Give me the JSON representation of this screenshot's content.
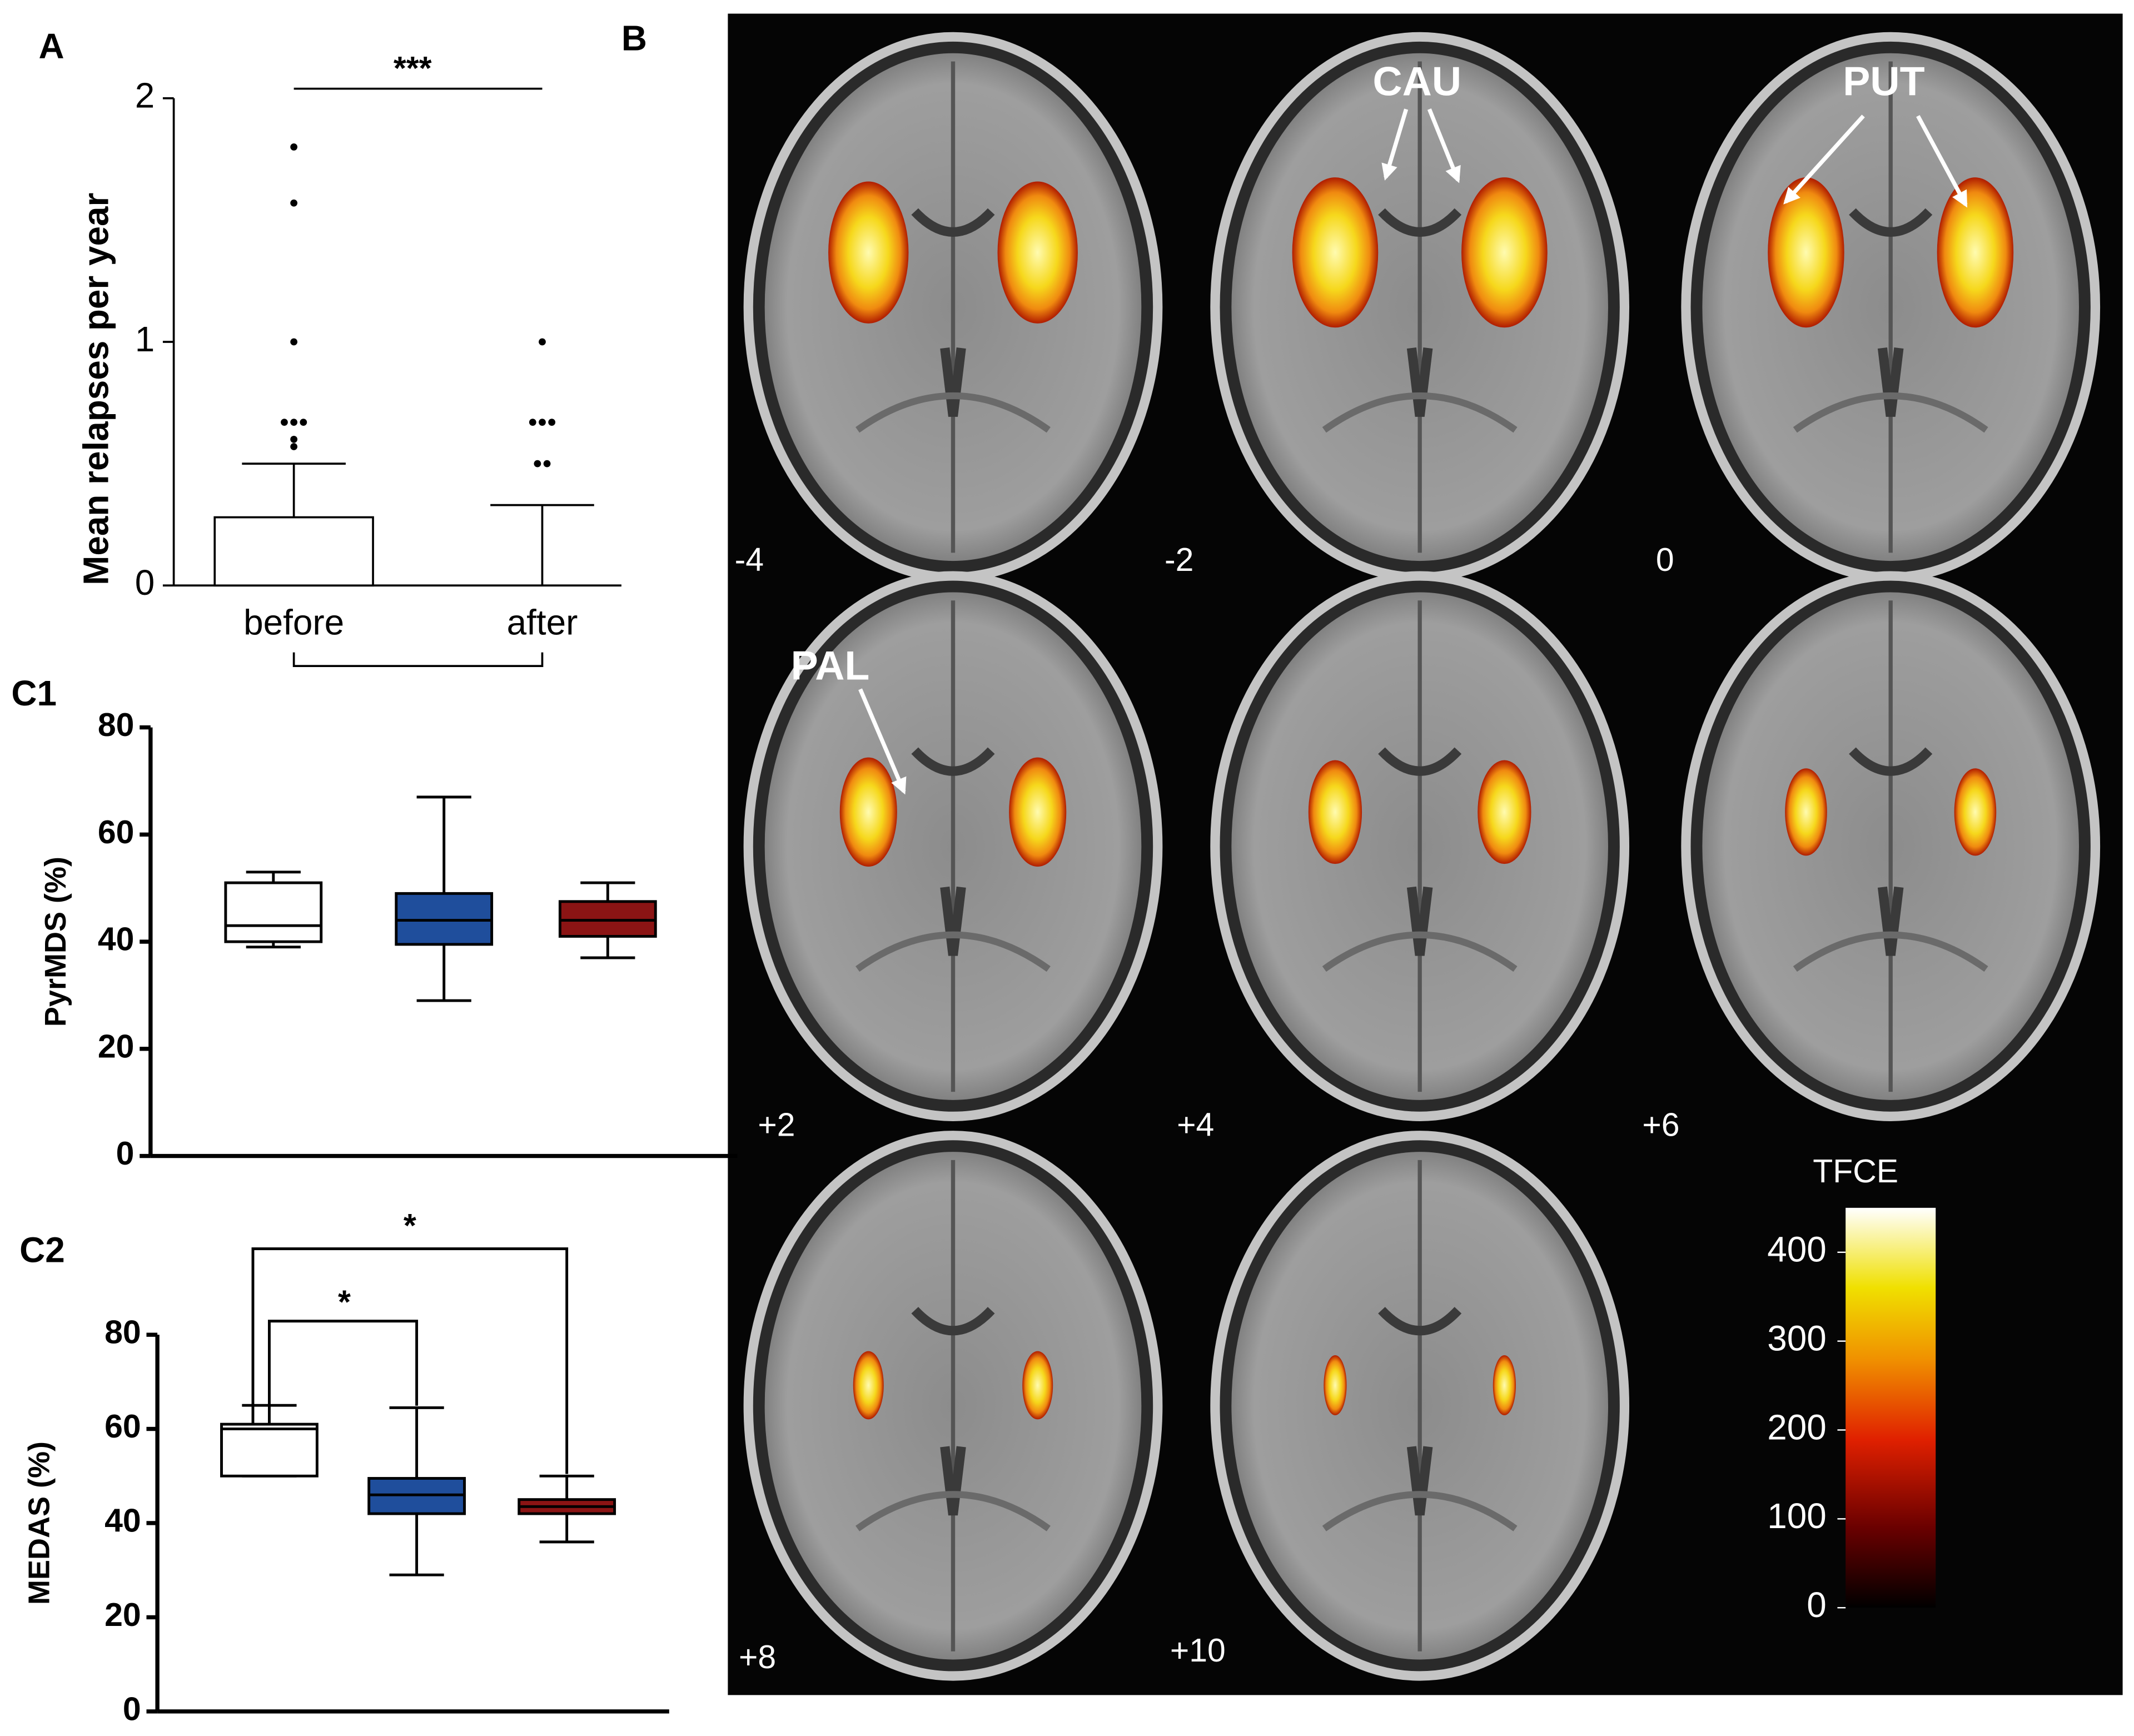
{
  "chart_data": [
    {
      "type": "bar",
      "panel_label": "A",
      "ylabel": "Mean relapses  per year",
      "categories": [
        "before",
        "after"
      ],
      "values": [
        0.28,
        0
      ],
      "errors": [
        0.22,
        0.33
      ],
      "points": [
        [
          1.8,
          1.57,
          1.0,
          0.67,
          0.67,
          0.67,
          0.6,
          0.57
        ],
        [
          1.0,
          0.67,
          0.67,
          0.67,
          0.5,
          0.5
        ]
      ],
      "color": "#ffffff",
      "ylim": [
        0,
        2
      ],
      "yticks": [
        0,
        1,
        2
      ],
      "annotations": [
        "***"
      ]
    },
    {
      "type": "box",
      "panel_label": "C1",
      "ylabel": "PyrMDS (%)",
      "boxes": [
        {
          "color": "#ffffff",
          "whislo": 39,
          "q1": 40,
          "med": 43,
          "q3": 51,
          "whishi": 53
        },
        {
          "color": "#1f4e9c",
          "whislo": 29,
          "q1": 39.5,
          "med": 44,
          "q3": 49,
          "whishi": 67
        },
        {
          "color": "#8b1414",
          "whislo": 37,
          "q1": 41,
          "med": 44,
          "q3": 47.5,
          "whishi": 51
        }
      ],
      "ylim": [
        0,
        80
      ],
      "yticks": [
        0,
        20,
        40,
        60,
        80
      ]
    },
    {
      "type": "box",
      "panel_label": "C2",
      "ylabel": "MEDAS (%)",
      "boxes": [
        {
          "color": "#ffffff",
          "whislo": 50,
          "q1": 50,
          "med": 60,
          "q3": 61,
          "whishi": 65
        },
        {
          "color": "#1f4e9c",
          "whislo": 29,
          "q1": 42,
          "med": 46,
          "q3": 49.5,
          "whishi": 64.5
        },
        {
          "color": "#8b1414",
          "whislo": 36,
          "q1": 42,
          "med": 43.5,
          "q3": 45,
          "whishi": 50
        }
      ],
      "ylim": [
        0,
        80
      ],
      "yticks": [
        0,
        20,
        40,
        60,
        80
      ],
      "annotations": [
        "*",
        "*"
      ]
    }
  ],
  "brain_panel": {
    "panel_label": "B",
    "slices": [
      "-4",
      "-2",
      "0",
      "+2",
      "+4",
      "+6",
      "+8",
      "+10"
    ],
    "regions": [
      "CAU",
      "PUT",
      "PAL"
    ],
    "colorbar": {
      "label": "TFCE",
      "lim": [
        0,
        450
      ],
      "ticks": [
        0,
        100,
        200,
        300,
        400
      ]
    }
  }
}
